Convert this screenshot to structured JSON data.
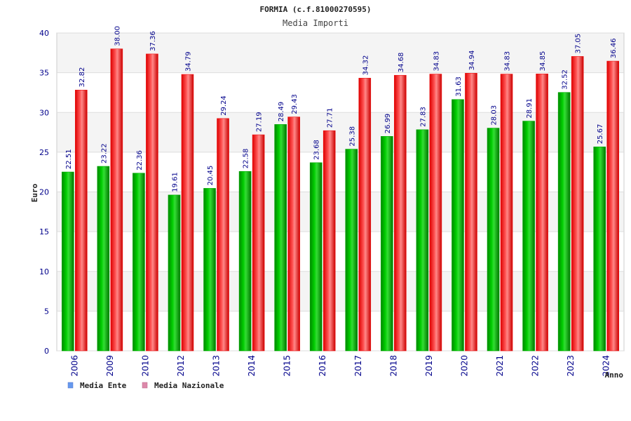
{
  "chart_data": {
    "type": "bar",
    "title": "FORMIA (c.f.81000270595)",
    "subtitle": "Media Importi",
    "xlabel": "Anno",
    "ylabel": "Euro",
    "ylim": [
      0,
      40
    ],
    "yticks": [
      0,
      5,
      10,
      15,
      20,
      25,
      30,
      35,
      40
    ],
    "grid": true,
    "legend_position": "bottom-left",
    "categories": [
      "2006",
      "2009",
      "2010",
      "2012",
      "2013",
      "2014",
      "2015",
      "2016",
      "2017",
      "2018",
      "2019",
      "2020",
      "2021",
      "2022",
      "2023",
      "2024"
    ],
    "series": [
      {
        "name": "Media Ente",
        "color": "#00aa00",
        "legend_color": "#6699ee",
        "values": [
          22.51,
          23.22,
          22.36,
          19.61,
          20.45,
          22.58,
          28.49,
          23.68,
          25.38,
          26.99,
          27.83,
          31.63,
          28.03,
          28.91,
          32.52,
          25.67
        ],
        "labels": [
          "22.51",
          "23.22",
          "22.36",
          "19.61",
          "20.45",
          "22.58",
          "28.49",
          "23.68",
          "25.38",
          "26.99",
          "27.83",
          "31.63",
          "28.03",
          "28.91",
          "32.52",
          "25.67"
        ]
      },
      {
        "name": "Media Nazionale",
        "color": "#ee1111",
        "legend_color": "#dd88aa",
        "values": [
          32.82,
          38.0,
          37.36,
          34.79,
          29.24,
          27.19,
          29.43,
          27.71,
          34.32,
          34.68,
          34.83,
          34.94,
          34.83,
          34.85,
          37.05,
          36.46
        ],
        "labels": [
          "32.82",
          "38.00",
          "37.36",
          "34.79",
          "29.24",
          "27.19",
          "29.43",
          "27.71",
          "34.32",
          "34.68",
          "34.83",
          "34.94",
          "34.83",
          "34.85",
          "37.05",
          "36.46"
        ]
      }
    ]
  }
}
